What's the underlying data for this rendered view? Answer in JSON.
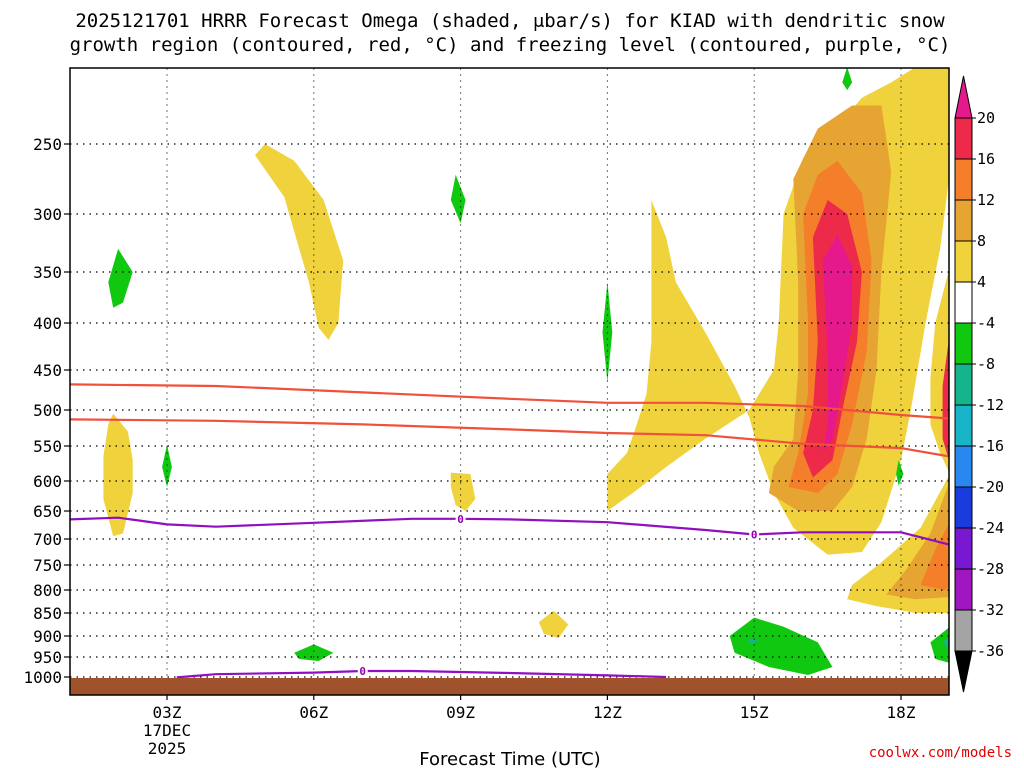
{
  "chart_data": {
    "type": "heatmap",
    "title_lines": [
      "2025121701 HRRR Forecast Omega (shaded, μbar/s) for KIAD with dendritic snow",
      "growth region (contoured, red, °C) and freezing level (contoured, purple, °C)"
    ],
    "xlabel": "Forecast Time (UTC)",
    "ylabel": "",
    "credit": "coolwx.com/models",
    "x_ticks": [
      {
        "hour": 3,
        "label": "03Z",
        "date": "17DEC",
        "year": "2025"
      },
      {
        "hour": 6,
        "label": "06Z"
      },
      {
        "hour": 9,
        "label": "09Z"
      },
      {
        "hour": 12,
        "label": "12Z"
      },
      {
        "hour": 15,
        "label": "15Z"
      },
      {
        "hour": 18,
        "label": "18Z"
      }
    ],
    "xlim": [
      1,
      19
    ],
    "y_ticks": [
      250,
      300,
      350,
      400,
      450,
      500,
      550,
      600,
      650,
      700,
      750,
      800,
      850,
      900,
      950,
      1000
    ],
    "ylim_hPa": [
      200,
      1010
    ],
    "colorbar": {
      "labels": [
        "20",
        "16",
        "12",
        "8",
        "4",
        "-4",
        "-8",
        "-12",
        "-16",
        "-20",
        "-24",
        "-28",
        "-32",
        "-36"
      ],
      "colors": [
        "#ee2a4a",
        "#f47e2a",
        "#e6a432",
        "#efd23c",
        "#ffffff",
        "#11c811",
        "#14b48c",
        "#18b4c8",
        "#2888f0",
        "#1a3cdc",
        "#7818d2",
        "#a016c0",
        "#a4a4a4"
      ],
      "top_color": "#e6198c",
      "bottom_color": "#000000"
    },
    "series": [
      {
        "name": "dendritic growth region -12 C",
        "color": "#f0503c",
        "x": [
          1,
          4,
          7,
          10,
          12,
          14,
          16,
          18,
          19
        ],
        "y": [
          468,
          470,
          478,
          486,
          491,
          491,
          495,
          507,
          512
        ]
      },
      {
        "name": "dendritic growth region -18 C",
        "color": "#f0503c",
        "x": [
          1,
          4,
          7,
          10,
          12,
          14,
          16,
          18,
          19
        ],
        "y": [
          513,
          515,
          520,
          527,
          532,
          535,
          547,
          553,
          565
        ]
      },
      {
        "name": "freezing level 0 C aloft",
        "color": "#9010c0",
        "x": [
          1,
          2,
          3,
          4,
          6,
          8,
          9,
          10,
          12,
          14,
          15,
          16,
          18,
          19
        ],
        "y": [
          665,
          662,
          674,
          678,
          671,
          664,
          664,
          665,
          670,
          684,
          692,
          688,
          688,
          711
        ]
      },
      {
        "name": "freezing level 0 C near surface",
        "color": "#9010c0",
        "x": [
          3.2,
          4,
          6,
          7,
          8,
          10,
          12,
          13.2
        ],
        "y": [
          1001,
          993,
          989,
          985,
          985,
          990,
          996,
          1000
        ]
      }
    ],
    "freezing_labels": [
      {
        "text": "0",
        "x": 7.0,
        "y": 985
      },
      {
        "text": "0",
        "x": 9.0,
        "y": 664
      },
      {
        "text": "0",
        "x": 15.0,
        "y": 692
      }
    ],
    "omega_regions": [
      {
        "value": 4,
        "pts": [
          [
            4.8,
            258
          ],
          [
            5.4,
            288
          ],
          [
            5.6,
            315
          ],
          [
            5.9,
            360
          ],
          [
            6.1,
            405
          ],
          [
            6.3,
            418
          ],
          [
            6.5,
            400
          ],
          [
            6.6,
            340
          ],
          [
            6.2,
            290
          ],
          [
            5.6,
            262
          ],
          [
            5.0,
            250
          ]
        ]
      },
      {
        "value": 4,
        "pts": [
          [
            1.9,
            505
          ],
          [
            2.2,
            530
          ],
          [
            2.3,
            570
          ],
          [
            2.3,
            620
          ],
          [
            2.1,
            690
          ],
          [
            1.9,
            695
          ],
          [
            1.7,
            630
          ],
          [
            1.7,
            565
          ],
          [
            1.8,
            520
          ]
        ]
      },
      {
        "value": 4,
        "pts": [
          [
            8.8,
            588
          ],
          [
            9.2,
            590
          ],
          [
            9.3,
            630
          ],
          [
            9.1,
            650
          ],
          [
            8.9,
            640
          ],
          [
            8.8,
            610
          ]
        ]
      },
      {
        "value": 4,
        "pts": [
          [
            10.6,
            870
          ],
          [
            10.9,
            845
          ],
          [
            11.2,
            875
          ],
          [
            11.0,
            905
          ],
          [
            10.7,
            895
          ]
        ]
      },
      {
        "value": 4,
        "pts": [
          [
            12.9,
            290
          ],
          [
            13.2,
            320
          ],
          [
            13.4,
            360
          ],
          [
            14.0,
            410
          ],
          [
            14.6,
            470
          ],
          [
            14.9,
            510
          ],
          [
            15.1,
            560
          ],
          [
            15.4,
            620
          ],
          [
            15.8,
            680
          ],
          [
            16.5,
            730
          ],
          [
            17.2,
            725
          ],
          [
            17.6,
            670
          ],
          [
            18.0,
            570
          ],
          [
            18.2,
            500
          ],
          [
            18.5,
            400
          ],
          [
            18.8,
            330
          ],
          [
            19.0,
            270
          ],
          [
            19.0,
            190
          ],
          [
            18.3,
            200
          ],
          [
            17.8,
            210
          ],
          [
            17.2,
            220
          ],
          [
            16.8,
            235
          ],
          [
            16.0,
            260
          ],
          [
            15.6,
            300
          ],
          [
            15.5,
            400
          ],
          [
            15.4,
            450
          ],
          [
            14.9,
            500
          ],
          [
            14.0,
            540
          ],
          [
            13.2,
            580
          ],
          [
            12.6,
            615
          ],
          [
            12.0,
            650
          ],
          [
            12.0,
            590
          ],
          [
            12.4,
            560
          ],
          [
            12.6,
            520
          ],
          [
            12.8,
            480
          ],
          [
            12.9,
            420
          ],
          [
            12.9,
            360
          ]
        ]
      },
      {
        "value": 4,
        "pts": [
          [
            19.0,
            590
          ],
          [
            18.4,
            680
          ],
          [
            17.6,
            745
          ],
          [
            17.0,
            790
          ],
          [
            16.9,
            820
          ],
          [
            17.5,
            835
          ],
          [
            18.3,
            850
          ],
          [
            19.0,
            850
          ]
        ]
      },
      {
        "value": 8,
        "pts": [
          [
            15.8,
            275
          ],
          [
            15.9,
            360
          ],
          [
            15.9,
            450
          ],
          [
            15.8,
            540
          ],
          [
            15.4,
            580
          ],
          [
            15.3,
            620
          ],
          [
            15.9,
            650
          ],
          [
            16.6,
            650
          ],
          [
            17.0,
            610
          ],
          [
            17.3,
            540
          ],
          [
            17.5,
            450
          ],
          [
            17.6,
            350
          ],
          [
            17.8,
            270
          ],
          [
            17.6,
            225
          ],
          [
            17.0,
            225
          ],
          [
            16.3,
            240
          ]
        ]
      },
      {
        "value": 8,
        "pts": [
          [
            19.0,
            600
          ],
          [
            18.6,
            690
          ],
          [
            18.1,
            760
          ],
          [
            17.7,
            810
          ],
          [
            18.3,
            820
          ],
          [
            19.0,
            815
          ]
        ]
      },
      {
        "value": 12,
        "pts": [
          [
            16.0,
            300
          ],
          [
            16.1,
            400
          ],
          [
            16.1,
            480
          ],
          [
            15.9,
            560
          ],
          [
            15.7,
            610
          ],
          [
            16.3,
            620
          ],
          [
            16.7,
            590
          ],
          [
            17.0,
            520
          ],
          [
            17.3,
            430
          ],
          [
            17.4,
            340
          ],
          [
            17.2,
            285
          ],
          [
            16.7,
            262
          ],
          [
            16.3,
            272
          ]
        ]
      },
      {
        "value": 12,
        "pts": [
          [
            19.0,
            670
          ],
          [
            18.7,
            720
          ],
          [
            18.4,
            790
          ],
          [
            18.9,
            800
          ],
          [
            19.0,
            790
          ]
        ]
      },
      {
        "value": 16,
        "pts": [
          [
            16.2,
            320
          ],
          [
            16.3,
            420
          ],
          [
            16.2,
            500
          ],
          [
            16.0,
            560
          ],
          [
            16.2,
            595
          ],
          [
            16.6,
            570
          ],
          [
            16.8,
            500
          ],
          [
            17.1,
            420
          ],
          [
            17.2,
            350
          ],
          [
            16.9,
            300
          ],
          [
            16.5,
            290
          ]
        ]
      },
      {
        "value": 20,
        "pts": [
          [
            16.4,
            340
          ],
          [
            16.5,
            430
          ],
          [
            16.5,
            520
          ],
          [
            16.4,
            560
          ],
          [
            16.6,
            540
          ],
          [
            16.8,
            470
          ],
          [
            17.0,
            400
          ],
          [
            17.0,
            345
          ],
          [
            16.7,
            318
          ]
        ]
      },
      {
        "value": 4,
        "pts": [
          [
            19.0,
            345
          ],
          [
            18.7,
            400
          ],
          [
            18.6,
            460
          ],
          [
            18.6,
            520
          ],
          [
            18.8,
            560
          ],
          [
            19.0,
            590
          ]
        ]
      },
      {
        "value": 16,
        "pts": [
          [
            19.0,
            410
          ],
          [
            18.85,
            470
          ],
          [
            18.85,
            540
          ],
          [
            19.0,
            575
          ]
        ]
      },
      {
        "value": -4,
        "pts": [
          [
            2.0,
            330
          ],
          [
            2.3,
            350
          ],
          [
            2.1,
            380
          ],
          [
            1.9,
            385
          ],
          [
            1.8,
            360
          ]
        ]
      },
      {
        "value": -4,
        "pts": [
          [
            3.0,
            548
          ],
          [
            3.1,
            580
          ],
          [
            3.0,
            610
          ],
          [
            2.9,
            580
          ]
        ]
      },
      {
        "value": -4,
        "pts": [
          [
            8.9,
            272
          ],
          [
            9.1,
            290
          ],
          [
            9.0,
            308
          ],
          [
            8.8,
            290
          ]
        ]
      },
      {
        "value": -4,
        "pts": [
          [
            12.0,
            360
          ],
          [
            12.1,
            410
          ],
          [
            12.0,
            465
          ],
          [
            11.9,
            410
          ]
        ]
      },
      {
        "value": -4,
        "pts": [
          [
            16.9,
            200
          ],
          [
            17.0,
            210
          ],
          [
            16.9,
            215
          ],
          [
            16.8,
            210
          ]
        ]
      },
      {
        "value": -4,
        "pts": [
          [
            5.6,
            940
          ],
          [
            6.0,
            920
          ],
          [
            6.4,
            940
          ],
          [
            6.1,
            960
          ],
          [
            5.7,
            955
          ]
        ]
      },
      {
        "value": -4,
        "pts": [
          [
            14.5,
            900
          ],
          [
            15.0,
            860
          ],
          [
            15.6,
            880
          ],
          [
            16.3,
            915
          ],
          [
            16.6,
            975
          ],
          [
            16.1,
            995
          ],
          [
            15.3,
            975
          ],
          [
            14.6,
            940
          ]
        ]
      },
      {
        "value": -4,
        "pts": [
          [
            17.95,
            570
          ],
          [
            18.05,
            590
          ],
          [
            17.95,
            608
          ],
          [
            17.9,
            590
          ]
        ]
      },
      {
        "value": -4,
        "pts": [
          [
            19.0,
            880
          ],
          [
            18.6,
            915
          ],
          [
            18.7,
            955
          ],
          [
            19.0,
            965
          ]
        ]
      },
      {
        "value": -8,
        "pts": [
          [
            14.95,
            905
          ],
          [
            15.1,
            910
          ],
          [
            14.95,
            918
          ],
          [
            14.85,
            910
          ]
        ]
      },
      {
        "value": -8,
        "pts": [
          [
            19.0,
            900
          ],
          [
            18.85,
            915
          ],
          [
            19.0,
            935
          ]
        ]
      }
    ]
  }
}
